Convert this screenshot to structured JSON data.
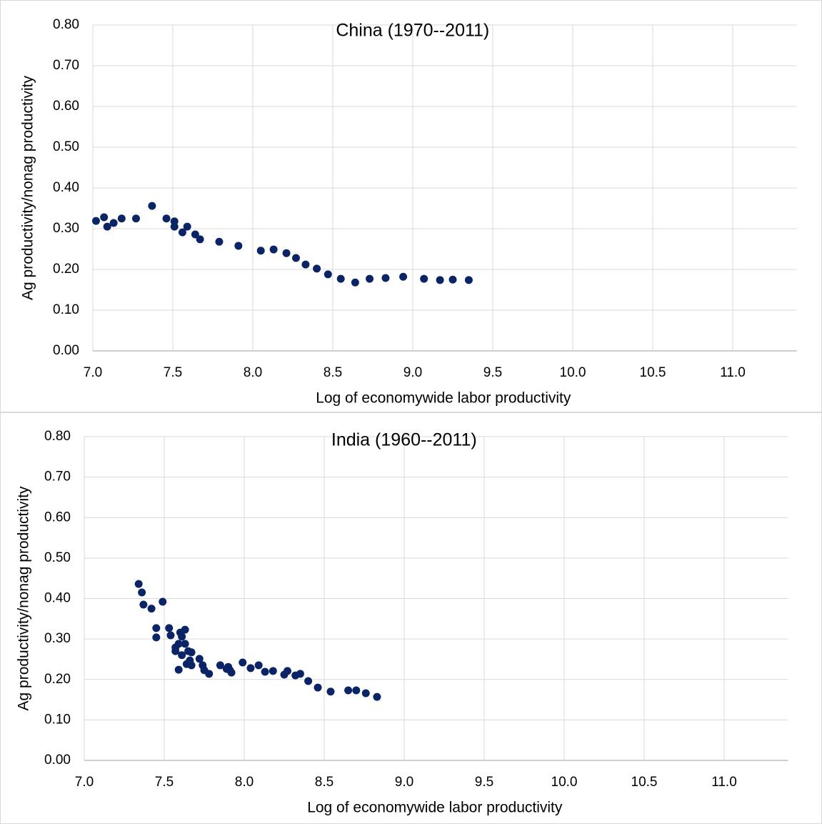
{
  "chart_data": [
    {
      "type": "scatter",
      "title": "China (1970--2011)",
      "x_label": "Log of economywide labor productivity",
      "y_label": "Ag productivity/nonag productivity",
      "color": "#0b2466",
      "grid": true,
      "xlim": [
        7.0,
        11.4
      ],
      "ylim": [
        0,
        0.8
      ],
      "xticks": [
        {
          "value": 7,
          "label": "7.0"
        },
        {
          "value": 7.5,
          "label": "7.5"
        },
        {
          "value": 8,
          "label": "8.0"
        },
        {
          "value": 8.5,
          "label": "8.5"
        },
        {
          "value": 9,
          "label": "9.0"
        },
        {
          "value": 9.5,
          "label": "9.5"
        },
        {
          "value": 10,
          "label": "10.0"
        },
        {
          "value": 10.5,
          "label": "10.5"
        },
        {
          "value": 11,
          "label": "11.0"
        }
      ],
      "yticks": [
        {
          "value": 0,
          "label": "0.00"
        },
        {
          "value": 0.1,
          "label": "0.10"
        },
        {
          "value": 0.2,
          "label": "0.20"
        },
        {
          "value": 0.3,
          "label": "0.30"
        },
        {
          "value": 0.4,
          "label": "0.40"
        },
        {
          "value": 0.5,
          "label": "0.50"
        },
        {
          "value": 0.6,
          "label": "0.60"
        },
        {
          "value": 0.7,
          "label": "0.70"
        },
        {
          "value": 0.8,
          "label": "0.80"
        }
      ],
      "x": [
        7.02,
        7.07,
        7.09,
        7.13,
        7.18,
        7.27,
        7.37,
        7.46,
        7.51,
        7.51,
        7.56,
        7.59,
        7.64,
        7.67,
        7.79,
        7.91,
        8.05,
        8.13,
        8.21,
        8.27,
        8.33,
        8.4,
        8.47,
        8.55,
        8.64,
        8.73,
        8.83,
        8.94,
        9.07,
        9.17,
        9.25,
        9.35
      ],
      "values": [
        0.319,
        0.328,
        0.305,
        0.314,
        0.325,
        0.325,
        0.356,
        0.325,
        0.305,
        0.318,
        0.291,
        0.305,
        0.286,
        0.274,
        0.268,
        0.258,
        0.246,
        0.249,
        0.24,
        0.228,
        0.212,
        0.202,
        0.188,
        0.177,
        0.168,
        0.177,
        0.179,
        0.182,
        0.177,
        0.174,
        0.175,
        0.174
      ]
    },
    {
      "type": "scatter",
      "title": "India (1960--2011)",
      "x_label": "Log of economywide labor productivity",
      "y_label": "Ag productivity/nonag productivity",
      "color": "#0b2466",
      "grid": true,
      "xlim": [
        7.0,
        11.4
      ],
      "ylim": [
        0,
        0.8
      ],
      "xticks": [
        {
          "value": 7,
          "label": "7.0"
        },
        {
          "value": 7.5,
          "label": "7.5"
        },
        {
          "value": 8,
          "label": "8.0"
        },
        {
          "value": 8.5,
          "label": "8.5"
        },
        {
          "value": 9,
          "label": "9.0"
        },
        {
          "value": 9.5,
          "label": "9.5"
        },
        {
          "value": 10,
          "label": "10.0"
        },
        {
          "value": 10.5,
          "label": "10.5"
        },
        {
          "value": 11,
          "label": "11.0"
        }
      ],
      "yticks": [
        {
          "value": 0,
          "label": "0.00"
        },
        {
          "value": 0.1,
          "label": "0.10"
        },
        {
          "value": 0.2,
          "label": "0.20"
        },
        {
          "value": 0.3,
          "label": "0.30"
        },
        {
          "value": 0.4,
          "label": "0.40"
        },
        {
          "value": 0.5,
          "label": "0.50"
        },
        {
          "value": 0.6,
          "label": "0.60"
        },
        {
          "value": 0.7,
          "label": "0.70"
        },
        {
          "value": 0.8,
          "label": "0.80"
        }
      ],
      "x": [
        7.34,
        7.36,
        7.37,
        7.42,
        7.49,
        7.45,
        7.45,
        7.53,
        7.54,
        7.57,
        7.57,
        7.59,
        7.59,
        7.6,
        7.61,
        7.61,
        7.63,
        7.63,
        7.64,
        7.65,
        7.67,
        7.66,
        7.67,
        7.72,
        7.74,
        7.75,
        7.78,
        7.85,
        7.89,
        7.9,
        7.91,
        7.92,
        7.99,
        8.04,
        8.09,
        8.13,
        8.18,
        8.25,
        8.27,
        8.32,
        8.35,
        8.4,
        8.46,
        8.54,
        8.65,
        8.7,
        8.76,
        8.83
      ],
      "values": [
        0.436,
        0.415,
        0.385,
        0.375,
        0.392,
        0.327,
        0.304,
        0.327,
        0.309,
        0.279,
        0.27,
        0.288,
        0.224,
        0.316,
        0.306,
        0.26,
        0.323,
        0.288,
        0.238,
        0.27,
        0.267,
        0.247,
        0.235,
        0.251,
        0.235,
        0.223,
        0.214,
        0.235,
        0.226,
        0.231,
        0.223,
        0.217,
        0.242,
        0.228,
        0.235,
        0.219,
        0.221,
        0.212,
        0.221,
        0.21,
        0.214,
        0.196,
        0.18,
        0.17,
        0.173,
        0.173,
        0.166,
        0.157
      ]
    }
  ]
}
